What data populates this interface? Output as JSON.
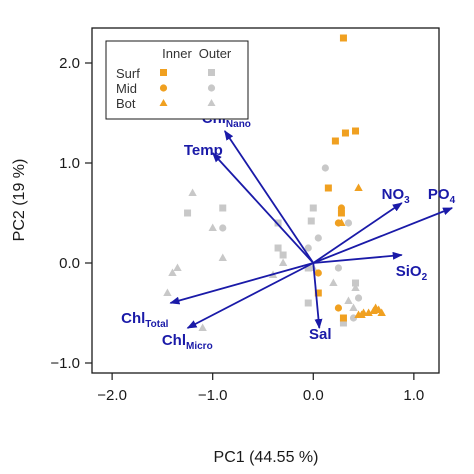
{
  "chart_data": {
    "type": "scatter",
    "title": "",
    "xlabel": "PC1 (44.55 %)",
    "ylabel": "PC2 (19 %)",
    "xlim": [
      -2.2,
      1.25
    ],
    "ylim": [
      -1.1,
      2.35
    ],
    "xticks": [
      -2.0,
      -1.0,
      0.0,
      1.0
    ],
    "xtick_labels": [
      "−2.0",
      "−1.0",
      "0.0",
      "1.0"
    ],
    "yticks": [
      -1.0,
      0.0,
      1.0,
      2.0
    ],
    "ytick_labels": [
      "−1.0",
      "0.0",
      "1.0",
      "2.0"
    ],
    "grid": false,
    "legend": {
      "placement": "top-left",
      "column_headers": [
        "Inner",
        "Outer"
      ],
      "row_labels": [
        "Surf",
        "Mid",
        "Bot"
      ]
    },
    "colors": {
      "Inner": "#f0a020",
      "Outer": "#c8c8c8",
      "vectors": "#1a1aa8"
    },
    "series": [
      {
        "name": "Surf",
        "group": "Inner",
        "marker": "square",
        "x": [
          0.3,
          0.32,
          0.42,
          0.22,
          0.15,
          0.28,
          0.05,
          0.3
        ],
        "y": [
          2.25,
          1.3,
          1.32,
          1.22,
          0.75,
          0.5,
          -0.3,
          -0.55
        ]
      },
      {
        "name": "Mid",
        "group": "Inner",
        "marker": "circle",
        "x": [
          0.25,
          0.28,
          0.05,
          0.25
        ],
        "y": [
          0.4,
          0.55,
          -0.1,
          -0.45
        ]
      },
      {
        "name": "Bot",
        "group": "Inner",
        "marker": "triangle",
        "x": [
          0.45,
          0.28,
          0.6,
          0.62,
          0.65,
          0.68,
          0.55,
          0.5,
          0.48,
          0.45
        ],
        "y": [
          0.75,
          0.4,
          -0.48,
          -0.45,
          -0.47,
          -0.5,
          -0.5,
          -0.5,
          -0.52,
          -0.52
        ]
      },
      {
        "name": "Surf",
        "group": "Outer",
        "marker": "square",
        "x": [
          -0.9,
          -0.35,
          -1.25,
          -0.02,
          0.0,
          -0.35,
          -0.3,
          0.42,
          -0.05,
          -0.05,
          0.3
        ],
        "y": [
          0.55,
          0.4,
          0.5,
          0.42,
          0.55,
          0.15,
          0.08,
          -0.2,
          -0.4,
          -0.05,
          -0.6
        ]
      },
      {
        "name": "Mid",
        "group": "Outer",
        "marker": "circle",
        "x": [
          -0.9,
          0.12,
          0.35,
          0.05,
          -0.05,
          0.25,
          0.45,
          0.4
        ],
        "y": [
          0.35,
          0.95,
          0.4,
          0.25,
          0.15,
          -0.05,
          -0.35,
          -0.55
        ]
      },
      {
        "name": "Bot",
        "group": "Outer",
        "marker": "triangle",
        "x": [
          -1.2,
          -1.0,
          -1.35,
          -0.9,
          -0.4,
          -0.3,
          0.0,
          0.2,
          0.42,
          0.35,
          0.4,
          -1.4,
          -1.45,
          -1.1
        ],
        "y": [
          0.7,
          0.35,
          -0.05,
          0.05,
          -0.12,
          0.0,
          -0.05,
          -0.2,
          -0.25,
          -0.38,
          -0.45,
          -0.1,
          -0.3,
          -0.65
        ]
      }
    ],
    "vectors": [
      {
        "label": "Chl",
        "subscript": "Nano",
        "x": -0.88,
        "y": 1.32,
        "label_anchor": "end",
        "label_x": -0.62,
        "label_y": 1.4
      },
      {
        "label": "Temp",
        "subscript": "",
        "x": -1.0,
        "y": 1.1,
        "label_anchor": "end",
        "label_x": -0.9,
        "label_y": 1.08
      },
      {
        "label": "NO",
        "subscript": "3",
        "x": 0.88,
        "y": 0.6,
        "label_anchor": "start",
        "label_x": 0.68,
        "label_y": 0.64
      },
      {
        "label": "PO",
        "subscript": "4",
        "x": 1.38,
        "y": 0.55,
        "label_anchor": "start",
        "label_x": 1.14,
        "label_y": 0.64
      },
      {
        "label": "SiO",
        "subscript": "2",
        "x": 0.88,
        "y": 0.08,
        "label_anchor": "start",
        "label_x": 0.82,
        "label_y": -0.13
      },
      {
        "label": "Sal",
        "subscript": "",
        "x": 0.06,
        "y": -0.65,
        "label_anchor": "middle",
        "label_x": 0.07,
        "label_y": -0.76
      },
      {
        "label": "Chl",
        "subscript": "Total",
        "x": -1.42,
        "y": -0.4,
        "label_anchor": "end",
        "label_x": -1.44,
        "label_y": -0.6
      },
      {
        "label": "Chl",
        "subscript": "Micro",
        "x": -1.25,
        "y": -0.65,
        "label_anchor": "end",
        "label_x": -1.0,
        "label_y": -0.82
      }
    ]
  }
}
